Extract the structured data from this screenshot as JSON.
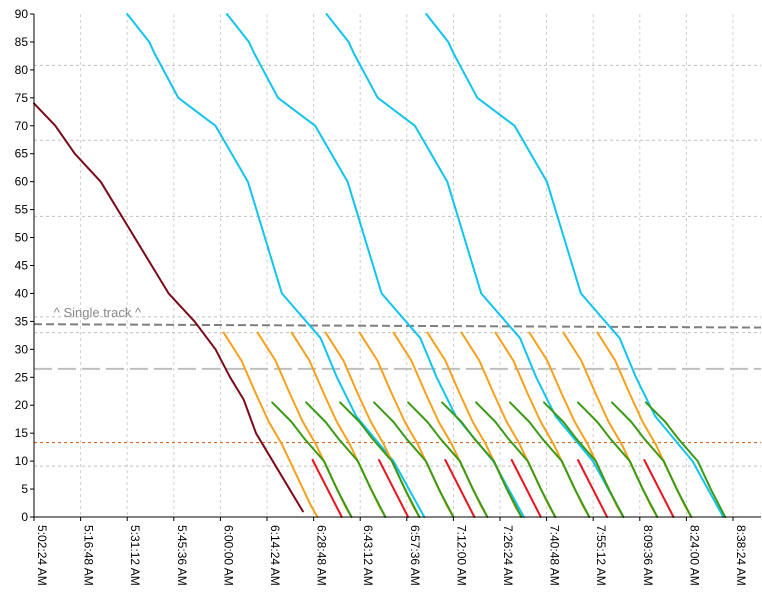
{
  "chart_data": {
    "type": "line",
    "xlabel": "",
    "ylabel": "",
    "x_unit": "time of day (minutes since midnight)",
    "xlim": [
      302.4,
      518.4
    ],
    "ylim": [
      0,
      90
    ],
    "x_ticks": [
      {
        "t": 302.4,
        "label": "5:02:24 AM"
      },
      {
        "t": 316.8,
        "label": "5:16:48 AM"
      },
      {
        "t": 331.2,
        "label": "5:31:12 AM"
      },
      {
        "t": 345.6,
        "label": "5:45:36 AM"
      },
      {
        "t": 360.0,
        "label": "6:00:00 AM"
      },
      {
        "t": 374.4,
        "label": "6:14:24 AM"
      },
      {
        "t": 388.8,
        "label": "6:28:48 AM"
      },
      {
        "t": 403.2,
        "label": "6:43:12 AM"
      },
      {
        "t": 417.6,
        "label": "6:57:36 AM"
      },
      {
        "t": 432.0,
        "label": "7:12:00 AM"
      },
      {
        "t": 446.4,
        "label": "7:26:24 AM"
      },
      {
        "t": 460.8,
        "label": "7:40:48 AM"
      },
      {
        "t": 475.2,
        "label": "7:55:12 AM"
      },
      {
        "t": 489.6,
        "label": "8:09:36 AM"
      },
      {
        "t": 504.0,
        "label": "8:24:00 AM"
      },
      {
        "t": 518.4,
        "label": "8:38:24 AM"
      }
    ],
    "y_ticks": [
      {
        "v": 0,
        "label": "0"
      },
      {
        "v": 5,
        "label": "5"
      },
      {
        "v": 10,
        "label": "10"
      },
      {
        "v": 15,
        "label": "15"
      },
      {
        "v": 20,
        "label": "20"
      },
      {
        "v": 25,
        "label": "25"
      },
      {
        "v": 30,
        "label": "30"
      },
      {
        "v": 35,
        "label": "35"
      },
      {
        "v": 40,
        "label": "40"
      },
      {
        "v": 45,
        "label": "45"
      },
      {
        "v": 50,
        "label": "50"
      },
      {
        "v": 55,
        "label": "55"
      },
      {
        "v": 60,
        "label": "60"
      },
      {
        "v": 65,
        "label": "65"
      },
      {
        "v": 70,
        "label": "70"
      },
      {
        "v": 75,
        "label": "75"
      },
      {
        "v": 80,
        "label": "80"
      },
      {
        "v": 85,
        "label": "85"
      },
      {
        "v": 90,
        "label": "90"
      }
    ],
    "grid": true,
    "station_lines": [
      {
        "y": 80.8,
        "color": "#c0c0c0",
        "style": "dashed-fine"
      },
      {
        "y": 67.4,
        "color": "#c0c0c0",
        "style": "dashed-fine"
      },
      {
        "y": 53.8,
        "color": "#c0c0c0",
        "style": "dashed-fine"
      },
      {
        "y": 35.8,
        "color": "#c0c0c0",
        "style": "dashed-fine"
      },
      {
        "y": 33.0,
        "color": "#c0c0c0",
        "style": "dashed-fine"
      },
      {
        "y": 9.1,
        "color": "#c0c0c0",
        "style": "dashed-fine"
      },
      {
        "y": 13.3,
        "color": "#c55a11",
        "style": "dashed-fine"
      },
      {
        "y_start": 34.5,
        "y_end": 33.9,
        "color": "#7f7f7f",
        "style": "dashed-bold"
      },
      {
        "y": 26.5,
        "color": "#bfbfbf",
        "style": "long-dash"
      }
    ],
    "annotation": {
      "text": "^ Single track ^",
      "t": 308.5,
      "y": 35.8
    },
    "colors": {
      "maroon": "#7b0a1a",
      "cyan": "#11c4ee",
      "orange": "#f7a01c",
      "green": "#3a9a14",
      "red": "#e8141e"
    },
    "series": [
      {
        "color": "maroon",
        "points": [
          [
            302.4,
            74
          ],
          [
            309.0,
            70
          ],
          [
            315.0,
            65
          ],
          [
            323.0,
            60
          ],
          [
            344.0,
            40
          ],
          [
            352.0,
            35
          ],
          [
            358.5,
            30
          ],
          [
            363.0,
            25
          ],
          [
            367.2,
            21
          ],
          [
            371.0,
            15
          ],
          [
            385.5,
            1
          ]
        ]
      },
      {
        "color": "cyan",
        "points": [
          [
            331.2,
            90
          ],
          [
            338.0,
            85
          ],
          [
            339.6,
            83
          ],
          [
            347.0,
            75
          ],
          [
            358.5,
            70
          ],
          [
            368.5,
            60
          ],
          [
            379.0,
            40
          ],
          [
            391.0,
            32
          ],
          [
            396.0,
            25
          ],
          [
            402.0,
            18
          ],
          [
            413.5,
            10
          ],
          [
            423.0,
            0
          ]
        ]
      },
      {
        "color": "cyan",
        "points": [
          [
            362.0,
            90
          ],
          [
            368.8,
            85
          ],
          [
            370.4,
            83
          ],
          [
            377.8,
            75
          ],
          [
            389.3,
            70
          ],
          [
            399.3,
            60
          ],
          [
            409.8,
            40
          ],
          [
            421.8,
            32
          ],
          [
            426.8,
            25
          ],
          [
            432.8,
            18
          ],
          [
            444.3,
            10
          ],
          [
            453.8,
            0
          ]
        ]
      },
      {
        "color": "cyan",
        "points": [
          [
            392.8,
            90
          ],
          [
            399.6,
            85
          ],
          [
            401.2,
            83
          ],
          [
            408.6,
            75
          ],
          [
            420.1,
            70
          ],
          [
            430.1,
            60
          ],
          [
            440.6,
            40
          ],
          [
            452.6,
            32
          ],
          [
            457.6,
            25
          ],
          [
            463.6,
            18
          ],
          [
            475.1,
            10
          ],
          [
            484.6,
            0
          ]
        ]
      },
      {
        "color": "cyan",
        "points": [
          [
            423.6,
            90
          ],
          [
            430.4,
            85
          ],
          [
            432.0,
            83
          ],
          [
            439.4,
            75
          ],
          [
            450.9,
            70
          ],
          [
            460.9,
            60
          ],
          [
            471.4,
            40
          ],
          [
            483.4,
            32
          ],
          [
            488.4,
            25
          ],
          [
            494.4,
            18
          ],
          [
            505.9,
            10
          ],
          [
            515.4,
            0
          ]
        ]
      },
      {
        "color": "orange",
        "points": [
          [
            361.0,
            33
          ],
          [
            366.5,
            28
          ],
          [
            371.0,
            22
          ],
          [
            375.0,
            17
          ],
          [
            379.0,
            13
          ],
          [
            388.0,
            2
          ],
          [
            390.0,
            0
          ]
        ]
      },
      {
        "color": "orange",
        "points": [
          [
            371.5,
            33
          ],
          [
            377.0,
            28
          ],
          [
            381.5,
            22
          ],
          [
            385.5,
            17
          ],
          [
            389.5,
            13
          ],
          [
            398.5,
            2
          ],
          [
            400.5,
            0
          ]
        ]
      },
      {
        "color": "orange",
        "points": [
          [
            382.0,
            33
          ],
          [
            387.5,
            28
          ],
          [
            392.0,
            22
          ],
          [
            396.0,
            17
          ],
          [
            400.0,
            13
          ],
          [
            409.0,
            2
          ],
          [
            411.0,
            0
          ]
        ]
      },
      {
        "color": "orange",
        "points": [
          [
            392.5,
            33
          ],
          [
            398.0,
            28
          ],
          [
            402.5,
            22
          ],
          [
            406.5,
            17
          ],
          [
            410.5,
            13
          ],
          [
            419.5,
            2
          ],
          [
            421.5,
            0
          ]
        ]
      },
      {
        "color": "orange",
        "points": [
          [
            403.0,
            33
          ],
          [
            408.5,
            28
          ],
          [
            413.0,
            22
          ],
          [
            417.0,
            17
          ],
          [
            421.0,
            13
          ],
          [
            430.0,
            2
          ],
          [
            432.0,
            0
          ]
        ]
      },
      {
        "color": "orange",
        "points": [
          [
            413.5,
            33
          ],
          [
            419.0,
            28
          ],
          [
            423.5,
            22
          ],
          [
            427.5,
            17
          ],
          [
            431.5,
            13
          ],
          [
            440.5,
            2
          ],
          [
            442.5,
            0
          ]
        ]
      },
      {
        "color": "orange",
        "points": [
          [
            424.0,
            33
          ],
          [
            429.5,
            28
          ],
          [
            434.0,
            22
          ],
          [
            438.0,
            17
          ],
          [
            442.0,
            13
          ],
          [
            451.0,
            2
          ],
          [
            453.0,
            0
          ]
        ]
      },
      {
        "color": "orange",
        "points": [
          [
            434.5,
            33
          ],
          [
            440.0,
            28
          ],
          [
            444.5,
            22
          ],
          [
            448.5,
            17
          ],
          [
            452.5,
            13
          ],
          [
            461.5,
            2
          ],
          [
            463.5,
            0
          ]
        ]
      },
      {
        "color": "orange",
        "points": [
          [
            445.0,
            33
          ],
          [
            450.5,
            28
          ],
          [
            455.0,
            22
          ],
          [
            459.0,
            17
          ],
          [
            463.0,
            13
          ],
          [
            472.0,
            2
          ],
          [
            474.0,
            0
          ]
        ]
      },
      {
        "color": "orange",
        "points": [
          [
            455.5,
            33
          ],
          [
            461.0,
            28
          ],
          [
            465.5,
            22
          ],
          [
            469.5,
            17
          ],
          [
            473.5,
            13
          ],
          [
            482.5,
            2
          ],
          [
            484.5,
            0
          ]
        ]
      },
      {
        "color": "orange",
        "points": [
          [
            466.0,
            33
          ],
          [
            471.5,
            28
          ],
          [
            476.0,
            22
          ],
          [
            480.0,
            17
          ],
          [
            484.0,
            13
          ],
          [
            493.0,
            2
          ],
          [
            495.0,
            0
          ]
        ]
      },
      {
        "color": "orange",
        "points": [
          [
            476.5,
            33
          ],
          [
            482.0,
            28
          ],
          [
            486.5,
            22
          ],
          [
            490.5,
            17
          ],
          [
            494.5,
            13
          ],
          [
            503.5,
            2
          ],
          [
            505.5,
            0
          ]
        ]
      },
      {
        "color": "green",
        "points": [
          [
            376.0,
            20.5
          ],
          [
            382.0,
            17
          ],
          [
            386.0,
            14
          ],
          [
            392.0,
            10
          ],
          [
            396.0,
            5
          ],
          [
            400.5,
            0
          ]
        ]
      },
      {
        "color": "green",
        "points": [
          [
            386.5,
            20.5
          ],
          [
            392.5,
            17
          ],
          [
            396.5,
            14
          ],
          [
            402.5,
            10
          ],
          [
            406.5,
            5
          ],
          [
            411.0,
            0
          ]
        ]
      },
      {
        "color": "green",
        "points": [
          [
            397.0,
            20.5
          ],
          [
            403.0,
            17
          ],
          [
            407.0,
            14
          ],
          [
            413.0,
            10
          ],
          [
            417.0,
            5
          ],
          [
            421.5,
            0
          ]
        ]
      },
      {
        "color": "green",
        "points": [
          [
            407.5,
            20.5
          ],
          [
            413.5,
            17
          ],
          [
            417.5,
            14
          ],
          [
            423.5,
            10
          ],
          [
            427.5,
            5
          ],
          [
            432.0,
            0
          ]
        ]
      },
      {
        "color": "green",
        "points": [
          [
            418.0,
            20.5
          ],
          [
            424.0,
            17
          ],
          [
            428.0,
            14
          ],
          [
            434.0,
            10
          ],
          [
            438.0,
            5
          ],
          [
            442.5,
            0
          ]
        ]
      },
      {
        "color": "green",
        "points": [
          [
            428.5,
            20.5
          ],
          [
            434.5,
            17
          ],
          [
            438.5,
            14
          ],
          [
            444.5,
            10
          ],
          [
            448.5,
            5
          ],
          [
            453.0,
            0
          ]
        ]
      },
      {
        "color": "green",
        "points": [
          [
            439.0,
            20.5
          ],
          [
            445.0,
            17
          ],
          [
            449.0,
            14
          ],
          [
            455.0,
            10
          ],
          [
            459.0,
            5
          ],
          [
            463.5,
            0
          ]
        ]
      },
      {
        "color": "green",
        "points": [
          [
            449.5,
            20.5
          ],
          [
            455.5,
            17
          ],
          [
            459.5,
            14
          ],
          [
            465.5,
            10
          ],
          [
            469.5,
            5
          ],
          [
            474.0,
            0
          ]
        ]
      },
      {
        "color": "green",
        "points": [
          [
            460.0,
            20.5
          ],
          [
            466.0,
            17
          ],
          [
            470.0,
            14
          ],
          [
            476.0,
            10
          ],
          [
            480.0,
            5
          ],
          [
            484.5,
            0
          ]
        ]
      },
      {
        "color": "green",
        "points": [
          [
            470.5,
            20.5
          ],
          [
            476.5,
            17
          ],
          [
            480.5,
            14
          ],
          [
            486.5,
            10
          ],
          [
            490.5,
            5
          ],
          [
            495.0,
            0
          ]
        ]
      },
      {
        "color": "green",
        "points": [
          [
            481.0,
            20.5
          ],
          [
            487.0,
            17
          ],
          [
            491.0,
            14
          ],
          [
            497.0,
            10
          ],
          [
            501.0,
            5
          ],
          [
            505.5,
            0
          ]
        ]
      },
      {
        "color": "green",
        "points": [
          [
            491.5,
            20.5
          ],
          [
            497.5,
            17
          ],
          [
            501.5,
            14
          ],
          [
            507.5,
            10
          ],
          [
            511.5,
            5
          ],
          [
            516.0,
            0
          ]
        ]
      },
      {
        "color": "red",
        "points": [
          [
            388.5,
            10.2
          ],
          [
            397.5,
            0
          ]
        ]
      },
      {
        "color": "red",
        "points": [
          [
            409.0,
            10.2
          ],
          [
            418.0,
            0
          ]
        ]
      },
      {
        "color": "red",
        "points": [
          [
            429.5,
            10.2
          ],
          [
            438.5,
            0
          ]
        ]
      },
      {
        "color": "red",
        "points": [
          [
            450.0,
            10.2
          ],
          [
            459.0,
            0
          ]
        ]
      },
      {
        "color": "red",
        "points": [
          [
            470.5,
            10.2
          ],
          [
            479.5,
            0
          ]
        ]
      },
      {
        "color": "red",
        "points": [
          [
            491.0,
            10.2
          ],
          [
            500.0,
            0
          ]
        ]
      }
    ]
  }
}
